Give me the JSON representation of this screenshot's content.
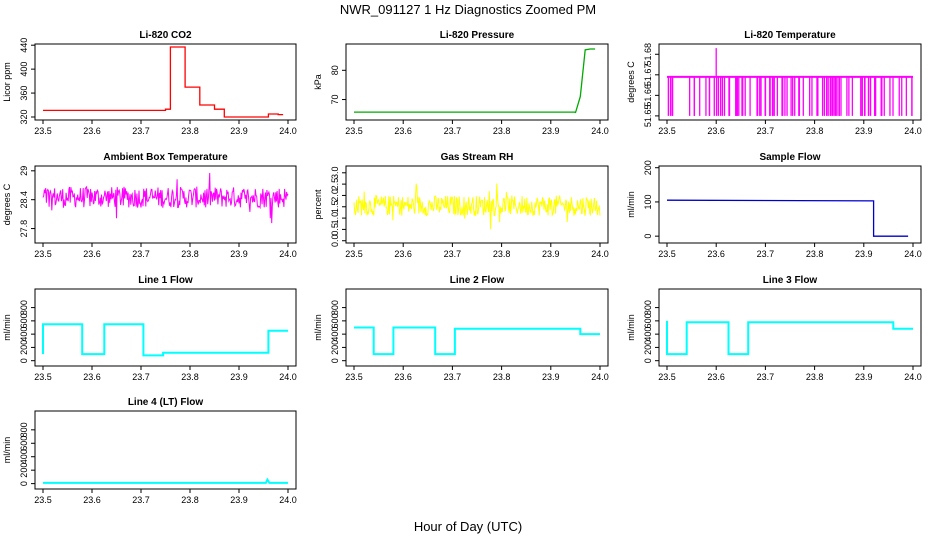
{
  "figure": {
    "title": "NWR_091127  1 Hz Diagnostics Zoomed PM",
    "xlabel": "Hour of Day (UTC)"
  },
  "chart_data": [
    {
      "type": "line",
      "title": "Li-820 CO2",
      "ylabel": "Licor ppm",
      "color": "#ff0000",
      "xlim": [
        23.5,
        24.0
      ],
      "ylim": [
        315,
        442
      ],
      "xticks": [
        "23.5",
        "23.6",
        "23.7",
        "23.8",
        "23.9",
        "24.0"
      ],
      "yticks": [
        320,
        360,
        400,
        440
      ],
      "x": [
        23.5,
        23.75,
        23.75,
        23.76,
        23.76,
        23.79,
        23.79,
        23.82,
        23.82,
        23.85,
        23.85,
        23.87,
        23.87,
        23.96,
        23.96,
        23.98,
        23.98,
        23.99
      ],
      "y": [
        331,
        331,
        333,
        333,
        437,
        437,
        370,
        370,
        340,
        340,
        333,
        333,
        320,
        320,
        325,
        325,
        324,
        324
      ]
    },
    {
      "type": "line",
      "title": "Li-820 Pressure",
      "ylabel": "kPa",
      "color": "#00aa00",
      "xlim": [
        23.5,
        24.0
      ],
      "ylim": [
        63,
        89
      ],
      "xticks": [
        "23.5",
        "23.6",
        "23.7",
        "23.8",
        "23.9",
        "24.0"
      ],
      "yticks": [
        70,
        80
      ],
      "x": [
        23.5,
        23.95,
        23.95,
        23.96,
        23.97,
        23.98,
        23.99
      ],
      "y": [
        65.7,
        65.7,
        65.4,
        71,
        87,
        87.3,
        87.3
      ]
    },
    {
      "type": "line",
      "title": "Li-820 Temperature",
      "ylabel": "degrees C",
      "color": "#ff00ff",
      "xlim": [
        23.5,
        24.0
      ],
      "ylim": [
        51.648,
        51.685
      ],
      "xticks": [
        "23.5",
        "23.6",
        "23.7",
        "23.8",
        "23.9",
        "24.0"
      ],
      "yticks": [
        51.65,
        51.66,
        51.67,
        51.68
      ],
      "base": 51.669,
      "low": 51.65,
      "spike_x": 23.6,
      "spike_y": 51.683,
      "x": [
        23.5,
        24.0
      ],
      "y": [
        51.669,
        51.669
      ]
    },
    {
      "type": "line",
      "title": "Ambient Box Temperature",
      "ylabel": "degrees C",
      "color": "#ff00ff",
      "xlim": [
        23.5,
        24.0
      ],
      "ylim": [
        27.5,
        29.1
      ],
      "xticks": [
        "23.5",
        "23.6",
        "23.7",
        "23.8",
        "23.9",
        "24.0"
      ],
      "yticks": [
        27.8,
        28.4,
        29.0
      ],
      "center": 28.45,
      "noise": 0.22,
      "x": [
        23.5,
        24.0
      ],
      "y": [
        28.45,
        28.45
      ]
    },
    {
      "type": "line",
      "title": "Gas Stream RH",
      "ylabel": "percent",
      "color": "#ffff00",
      "xlim": [
        23.5,
        24.0
      ],
      "ylim": [
        -0.1,
        3.3
      ],
      "xticks": [
        "23.5",
        "23.6",
        "23.7",
        "23.8",
        "23.9",
        "24.0"
      ],
      "yticks": [
        0.0,
        0.5,
        1.0,
        1.5,
        2.0,
        2.5,
        3.0
      ],
      "center": 1.55,
      "noise": 0.45,
      "x": [
        23.5,
        24.0
      ],
      "y": [
        1.55,
        1.55
      ]
    },
    {
      "type": "line",
      "title": "Sample Flow",
      "ylabel": "ml/min",
      "color": "#0000cc",
      "xlim": [
        23.5,
        24.0
      ],
      "ylim": [
        -20,
        205
      ],
      "xticks": [
        "23.5",
        "23.6",
        "23.7",
        "23.8",
        "23.9",
        "24.0"
      ],
      "yticks": [
        0,
        100,
        200
      ],
      "x": [
        23.5,
        23.92,
        23.92,
        23.99
      ],
      "y": [
        105,
        103,
        0,
        0
      ]
    },
    {
      "type": "line",
      "title": "Line 1 Flow",
      "ylabel": "ml/min",
      "color": "#00ffff",
      "xlim": [
        23.5,
        24.0
      ],
      "ylim": [
        -80,
        1080
      ],
      "xticks": [
        "23.5",
        "23.6",
        "23.7",
        "23.8",
        "23.9",
        "24.0"
      ],
      "yticks": [
        0,
        200,
        400,
        600,
        800
      ],
      "x": [
        23.5,
        23.5,
        23.58,
        23.58,
        23.625,
        23.625,
        23.705,
        23.705,
        23.745,
        23.745,
        23.96,
        23.96,
        24.0
      ],
      "y": [
        100,
        550,
        550,
        100,
        100,
        550,
        550,
        80,
        80,
        120,
        120,
        450,
        450
      ]
    },
    {
      "type": "line",
      "title": "Line 2 Flow",
      "ylabel": "ml/min",
      "color": "#00ffff",
      "xlim": [
        23.5,
        24.0
      ],
      "ylim": [
        -80,
        1080
      ],
      "xticks": [
        "23.5",
        "23.6",
        "23.7",
        "23.8",
        "23.9",
        "24.0"
      ],
      "yticks": [
        0,
        200,
        400,
        600,
        800
      ],
      "x": [
        23.5,
        23.54,
        23.54,
        23.58,
        23.58,
        23.665,
        23.665,
        23.705,
        23.705,
        23.96,
        23.96,
        24.0
      ],
      "y": [
        500,
        500,
        100,
        100,
        500,
        500,
        100,
        100,
        480,
        480,
        400,
        400
      ]
    },
    {
      "type": "line",
      "title": "Line 3 Flow",
      "ylabel": "ml/min",
      "color": "#00ffff",
      "xlim": [
        23.5,
        24.0
      ],
      "ylim": [
        -80,
        1080
      ],
      "xticks": [
        "23.5",
        "23.6",
        "23.7",
        "23.8",
        "23.9",
        "24.0"
      ],
      "yticks": [
        0,
        200,
        400,
        600,
        800
      ],
      "x": [
        23.5,
        23.5,
        23.54,
        23.54,
        23.625,
        23.625,
        23.665,
        23.665,
        23.96,
        23.96,
        24.0
      ],
      "y": [
        600,
        100,
        100,
        580,
        580,
        100,
        100,
        580,
        580,
        480,
        480
      ]
    },
    {
      "type": "line",
      "title": "Line 4 (LT) Flow",
      "ylabel": "ml/min",
      "color": "#00ffff",
      "xlim": [
        23.5,
        24.0
      ],
      "ylim": [
        -80,
        1080
      ],
      "xticks": [
        "23.5",
        "23.6",
        "23.7",
        "23.8",
        "23.9",
        "24.0"
      ],
      "yticks": [
        0,
        200,
        400,
        600,
        800
      ],
      "x": [
        23.5,
        23.955,
        23.958,
        23.962,
        24.0
      ],
      "y": [
        10,
        10,
        60,
        10,
        10
      ]
    }
  ]
}
